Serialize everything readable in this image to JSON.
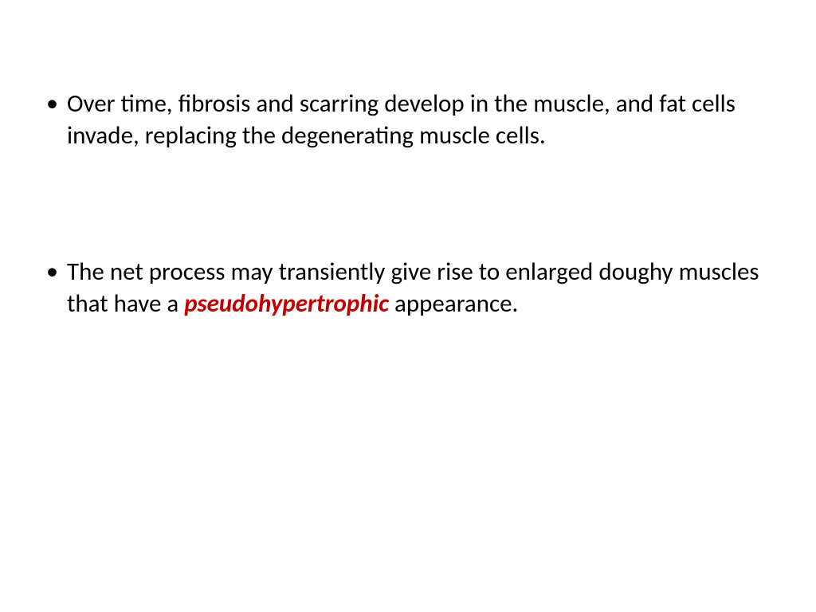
{
  "slide": {
    "background_color": "#ffffff",
    "text_color": "#000000",
    "emphasis_color": "#c00000",
    "font_family": "Calibri",
    "body_fontsize": 31,
    "bullets": [
      {
        "text_before": "Over time, fibrosis and scarring develop in the muscle, and fat cells invade, replacing the degenerating muscle cells.",
        "emphasis": "",
        "text_after": ""
      },
      {
        "text_before": "The net process may transiently give rise to enlarged doughy muscles that have a ",
        "emphasis": "pseudohypertrophic",
        "text_after": " appearance."
      }
    ]
  }
}
